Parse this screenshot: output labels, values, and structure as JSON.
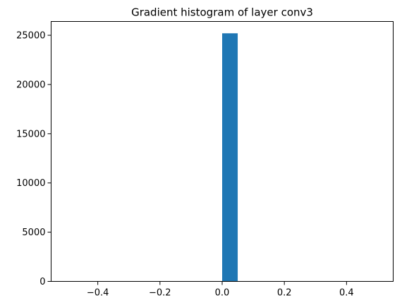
{
  "chart_data": {
    "type": "bar",
    "title": "Gradient histogram of layer conv3",
    "xlabel": "",
    "ylabel": "",
    "xlim": [
      -0.55,
      0.55
    ],
    "ylim": [
      0,
      26400
    ],
    "grid": false,
    "bar_color": "#1f77b4",
    "bins": [
      {
        "x_start": 0.0,
        "x_end": 0.05,
        "count": 25200
      }
    ],
    "x_ticks": [
      {
        "value": -0.4,
        "label": "−0.4"
      },
      {
        "value": -0.2,
        "label": "−0.2"
      },
      {
        "value": 0.0,
        "label": "0.0"
      },
      {
        "value": 0.2,
        "label": "0.2"
      },
      {
        "value": 0.4,
        "label": "0.4"
      }
    ],
    "y_ticks": [
      {
        "value": 0,
        "label": "0"
      },
      {
        "value": 5000,
        "label": "5000"
      },
      {
        "value": 10000,
        "label": "10000"
      },
      {
        "value": 15000,
        "label": "15000"
      },
      {
        "value": 20000,
        "label": "20000"
      },
      {
        "value": 25000,
        "label": "25000"
      }
    ]
  }
}
